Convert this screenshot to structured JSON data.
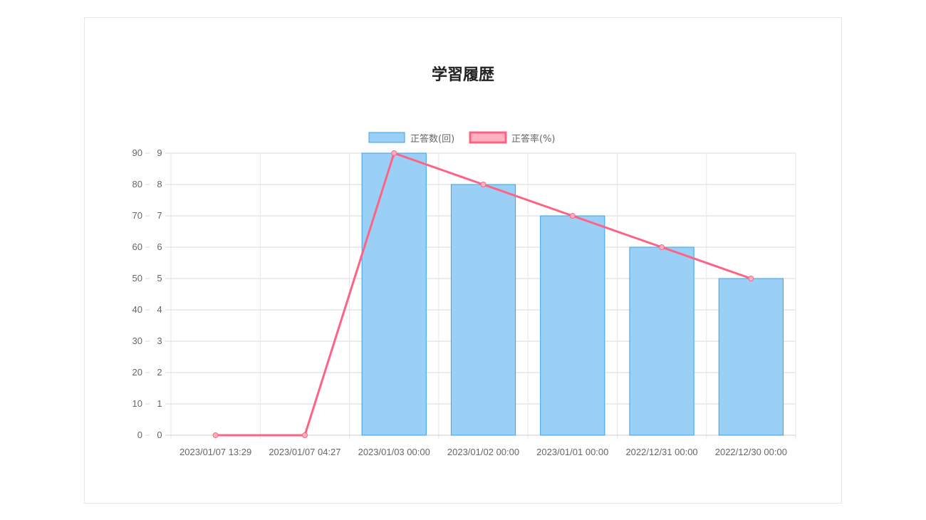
{
  "chart_data": {
    "type": "bar",
    "title": "学習履歴",
    "categories": [
      "2023/01/07 13:29",
      "2023/01/07 04:27",
      "2023/01/03 00:00",
      "2023/01/02 00:00",
      "2023/01/01 00:00",
      "2022/12/31 00:00",
      "2022/12/30 00:00"
    ],
    "series": [
      {
        "name": "正答数(回)",
        "type": "bar",
        "axis": "right",
        "values": [
          0,
          0,
          9,
          8,
          7,
          6,
          5
        ],
        "fill": "#9ad0f5",
        "stroke": "#36a2eb"
      },
      {
        "name": "正答率(%)",
        "type": "line",
        "axis": "left",
        "values": [
          0,
          0,
          90,
          80,
          70,
          60,
          50
        ],
        "fill": "#ffb1c1",
        "stroke": "#ff6384"
      }
    ],
    "y_left": {
      "ticks": [
        "0",
        "10",
        "20",
        "30",
        "40",
        "50",
        "60",
        "70",
        "80",
        "90"
      ],
      "ylim": [
        0,
        90
      ]
    },
    "y_right": {
      "ticks": [
        "0",
        "1",
        "2",
        "3",
        "4",
        "5",
        "6",
        "7",
        "8",
        "9"
      ],
      "ylim": [
        0,
        9
      ]
    },
    "legend": "top",
    "grid": true
  }
}
